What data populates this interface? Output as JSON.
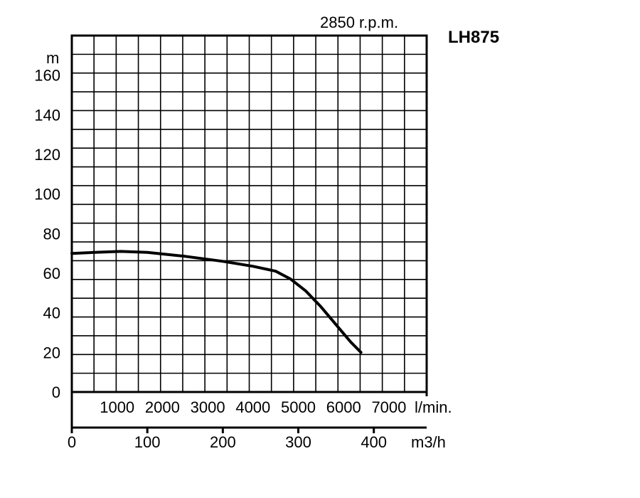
{
  "chart_data": {
    "type": "line",
    "title": "LH875",
    "subtitle": "2850 r.p.m.",
    "ylabel": "m",
    "xlabel_lpm": "l/min.",
    "xlabel_m3h": "m3/h",
    "ylim": [
      0,
      180
    ],
    "xlim": [
      0,
      470
    ],
    "grid": true,
    "y_ticks": [
      "0",
      "20",
      "40",
      "60",
      "80",
      "100",
      "120",
      "140",
      "160"
    ],
    "y_tick_values": [
      0,
      20,
      40,
      60,
      80,
      100,
      120,
      140,
      160
    ],
    "lpm_ticks": [
      "1000",
      "2000",
      "3000",
      "4000",
      "5000",
      "6000",
      "7000"
    ],
    "lpm_tick_values": [
      1000,
      2000,
      3000,
      4000,
      5000,
      6000,
      7000
    ],
    "m3h_ticks": [
      "0",
      "100",
      "200",
      "300",
      "400"
    ],
    "m3h_tick_values": [
      0,
      100,
      200,
      300,
      400
    ],
    "series": [
      {
        "x": [
          0,
          30,
          65,
          100,
          150,
          200,
          240,
          270,
          290,
          310,
          330,
          350,
          370,
          383
        ],
        "y": [
          70,
          70.5,
          71,
          70.5,
          68.5,
          66,
          63.5,
          61,
          57,
          51,
          43,
          34,
          25,
          20
        ]
      }
    ]
  }
}
